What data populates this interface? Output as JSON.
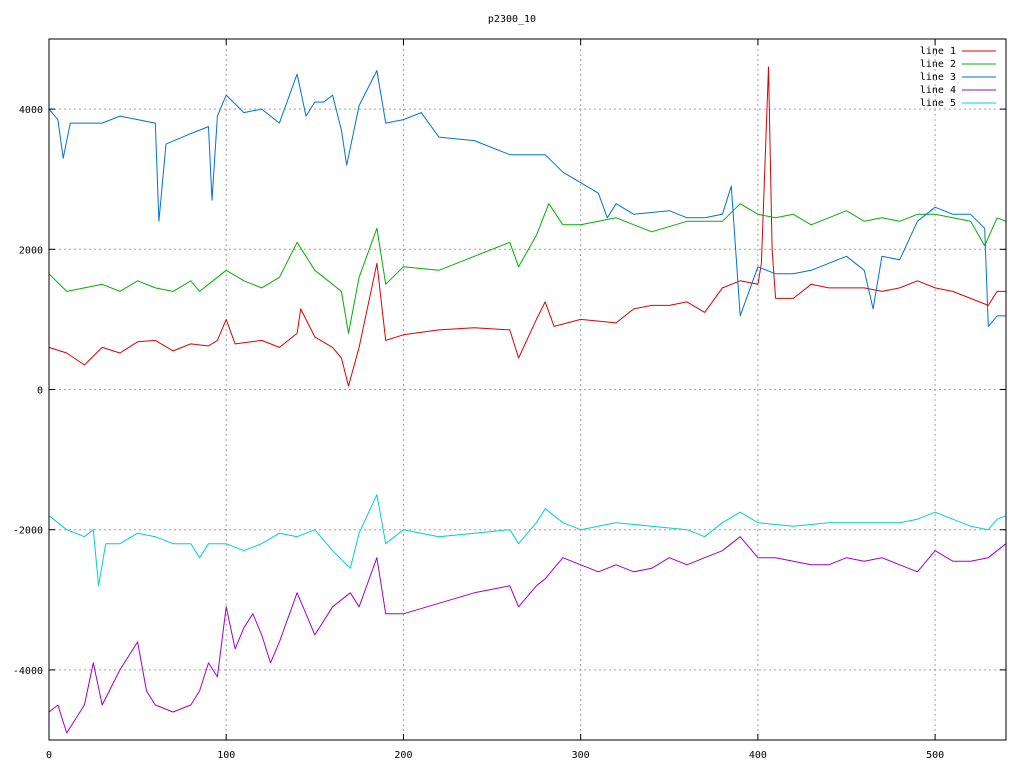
{
  "chart_data": {
    "type": "line",
    "title": "p2300_10",
    "xlabel": "",
    "ylabel": "",
    "xlim": [
      0,
      540
    ],
    "ylim": [
      -5000,
      5000
    ],
    "x_ticks": [
      0,
      100,
      200,
      300,
      400,
      500
    ],
    "y_ticks": [
      -4000,
      -2000,
      0,
      2000,
      4000
    ],
    "grid": true,
    "legend_position": "top-right",
    "series": [
      {
        "name": "line 1",
        "color": "#e00000",
        "points": [
          [
            0,
            600
          ],
          [
            10,
            520
          ],
          [
            20,
            350
          ],
          [
            30,
            600
          ],
          [
            40,
            520
          ],
          [
            50,
            680
          ],
          [
            60,
            700
          ],
          [
            70,
            550
          ],
          [
            80,
            650
          ],
          [
            90,
            620
          ],
          [
            95,
            700
          ],
          [
            100,
            1000
          ],
          [
            105,
            650
          ],
          [
            120,
            700
          ],
          [
            130,
            600
          ],
          [
            140,
            800
          ],
          [
            142,
            1150
          ],
          [
            150,
            750
          ],
          [
            160,
            600
          ],
          [
            165,
            450
          ],
          [
            169,
            50
          ],
          [
            175,
            600
          ],
          [
            185,
            1800
          ],
          [
            190,
            700
          ],
          [
            200,
            780
          ],
          [
            220,
            850
          ],
          [
            240,
            880
          ],
          [
            260,
            850
          ],
          [
            265,
            450
          ],
          [
            275,
            1000
          ],
          [
            280,
            1250
          ],
          [
            285,
            900
          ],
          [
            300,
            1000
          ],
          [
            320,
            950
          ],
          [
            330,
            1150
          ],
          [
            340,
            1200
          ],
          [
            350,
            1200
          ],
          [
            360,
            1250
          ],
          [
            370,
            1100
          ],
          [
            380,
            1450
          ],
          [
            390,
            1550
          ],
          [
            400,
            1500
          ],
          [
            402,
            1800
          ],
          [
            406,
            4600
          ],
          [
            408,
            2000
          ],
          [
            410,
            1300
          ],
          [
            420,
            1300
          ],
          [
            430,
            1500
          ],
          [
            440,
            1450
          ],
          [
            450,
            1450
          ],
          [
            460,
            1450
          ],
          [
            470,
            1400
          ],
          [
            480,
            1450
          ],
          [
            490,
            1550
          ],
          [
            500,
            1450
          ],
          [
            510,
            1400
          ],
          [
            520,
            1300
          ],
          [
            530,
            1200
          ],
          [
            535,
            1400
          ],
          [
            540,
            1400
          ]
        ]
      },
      {
        "name": "line 2",
        "color": "#00b000",
        "points": [
          [
            0,
            1650
          ],
          [
            10,
            1400
          ],
          [
            20,
            1450
          ],
          [
            30,
            1500
          ],
          [
            40,
            1400
          ],
          [
            50,
            1550
          ],
          [
            60,
            1450
          ],
          [
            70,
            1400
          ],
          [
            80,
            1550
          ],
          [
            85,
            1400
          ],
          [
            90,
            1500
          ],
          [
            100,
            1700
          ],
          [
            110,
            1550
          ],
          [
            120,
            1450
          ],
          [
            130,
            1600
          ],
          [
            140,
            2100
          ],
          [
            150,
            1700
          ],
          [
            160,
            1500
          ],
          [
            165,
            1400
          ],
          [
            169,
            800
          ],
          [
            175,
            1600
          ],
          [
            185,
            2300
          ],
          [
            190,
            1500
          ],
          [
            200,
            1750
          ],
          [
            220,
            1700
          ],
          [
            240,
            1900
          ],
          [
            260,
            2100
          ],
          [
            265,
            1750
          ],
          [
            275,
            2200
          ],
          [
            282,
            2650
          ],
          [
            290,
            2350
          ],
          [
            300,
            2350
          ],
          [
            320,
            2450
          ],
          [
            340,
            2250
          ],
          [
            360,
            2400
          ],
          [
            380,
            2400
          ],
          [
            390,
            2650
          ],
          [
            400,
            2500
          ],
          [
            410,
            2450
          ],
          [
            420,
            2500
          ],
          [
            430,
            2350
          ],
          [
            440,
            2450
          ],
          [
            450,
            2550
          ],
          [
            460,
            2400
          ],
          [
            470,
            2450
          ],
          [
            480,
            2400
          ],
          [
            490,
            2500
          ],
          [
            500,
            2500
          ],
          [
            510,
            2450
          ],
          [
            520,
            2400
          ],
          [
            528,
            2050
          ],
          [
            535,
            2450
          ],
          [
            540,
            2400
          ]
        ]
      },
      {
        "name": "line 3",
        "color": "#0070e0",
        "points": [
          [
            0,
            4000
          ],
          [
            5,
            3850
          ],
          [
            8,
            3300
          ],
          [
            12,
            3800
          ],
          [
            20,
            3800
          ],
          [
            30,
            3800
          ],
          [
            40,
            3900
          ],
          [
            50,
            3850
          ],
          [
            60,
            3800
          ],
          [
            62,
            2400
          ],
          [
            66,
            3500
          ],
          [
            80,
            3650
          ],
          [
            90,
            3750
          ],
          [
            92,
            2700
          ],
          [
            95,
            3900
          ],
          [
            100,
            4200
          ],
          [
            110,
            3950
          ],
          [
            120,
            4000
          ],
          [
            130,
            3800
          ],
          [
            140,
            4500
          ],
          [
            145,
            3900
          ],
          [
            150,
            4100
          ],
          [
            155,
            4100
          ],
          [
            160,
            4200
          ],
          [
            165,
            3700
          ],
          [
            168,
            3200
          ],
          [
            175,
            4050
          ],
          [
            185,
            4550
          ],
          [
            190,
            3800
          ],
          [
            200,
            3850
          ],
          [
            210,
            3950
          ],
          [
            220,
            3600
          ],
          [
            240,
            3550
          ],
          [
            260,
            3350
          ],
          [
            280,
            3350
          ],
          [
            290,
            3100
          ],
          [
            300,
            2950
          ],
          [
            310,
            2800
          ],
          [
            315,
            2450
          ],
          [
            320,
            2650
          ],
          [
            330,
            2500
          ],
          [
            350,
            2550
          ],
          [
            360,
            2450
          ],
          [
            370,
            2450
          ],
          [
            380,
            2500
          ],
          [
            385,
            2900
          ],
          [
            390,
            1050
          ],
          [
            400,
            1750
          ],
          [
            410,
            1650
          ],
          [
            420,
            1650
          ],
          [
            430,
            1700
          ],
          [
            440,
            1800
          ],
          [
            450,
            1900
          ],
          [
            460,
            1700
          ],
          [
            465,
            1150
          ],
          [
            470,
            1900
          ],
          [
            480,
            1850
          ],
          [
            490,
            2400
          ],
          [
            500,
            2600
          ],
          [
            510,
            2500
          ],
          [
            520,
            2500
          ],
          [
            528,
            2300
          ],
          [
            530,
            900
          ],
          [
            535,
            1050
          ],
          [
            540,
            1050
          ]
        ]
      },
      {
        "name": "line 4",
        "color": "#a000d0",
        "points": [
          [
            0,
            -4600
          ],
          [
            5,
            -4500
          ],
          [
            10,
            -4900
          ],
          [
            20,
            -4500
          ],
          [
            25,
            -3900
          ],
          [
            30,
            -4500
          ],
          [
            40,
            -4000
          ],
          [
            50,
            -3600
          ],
          [
            55,
            -4300
          ],
          [
            60,
            -4500
          ],
          [
            70,
            -4600
          ],
          [
            80,
            -4500
          ],
          [
            85,
            -4300
          ],
          [
            90,
            -3900
          ],
          [
            95,
            -4100
          ],
          [
            100,
            -3100
          ],
          [
            105,
            -3700
          ],
          [
            110,
            -3400
          ],
          [
            115,
            -3200
          ],
          [
            120,
            -3500
          ],
          [
            125,
            -3900
          ],
          [
            130,
            -3600
          ],
          [
            140,
            -2900
          ],
          [
            145,
            -3200
          ],
          [
            150,
            -3500
          ],
          [
            160,
            -3100
          ],
          [
            170,
            -2900
          ],
          [
            175,
            -3100
          ],
          [
            185,
            -2400
          ],
          [
            190,
            -3200
          ],
          [
            200,
            -3200
          ],
          [
            220,
            -3050
          ],
          [
            240,
            -2900
          ],
          [
            260,
            -2800
          ],
          [
            265,
            -3100
          ],
          [
            275,
            -2800
          ],
          [
            280,
            -2700
          ],
          [
            290,
            -2400
          ],
          [
            300,
            -2500
          ],
          [
            310,
            -2600
          ],
          [
            320,
            -2500
          ],
          [
            330,
            -2600
          ],
          [
            340,
            -2550
          ],
          [
            350,
            -2400
          ],
          [
            360,
            -2500
          ],
          [
            370,
            -2400
          ],
          [
            380,
            -2300
          ],
          [
            390,
            -2100
          ],
          [
            400,
            -2400
          ],
          [
            410,
            -2400
          ],
          [
            420,
            -2450
          ],
          [
            430,
            -2500
          ],
          [
            440,
            -2500
          ],
          [
            450,
            -2400
          ],
          [
            460,
            -2450
          ],
          [
            470,
            -2400
          ],
          [
            480,
            -2500
          ],
          [
            490,
            -2600
          ],
          [
            500,
            -2300
          ],
          [
            510,
            -2450
          ],
          [
            520,
            -2450
          ],
          [
            530,
            -2400
          ],
          [
            535,
            -2300
          ],
          [
            540,
            -2200
          ]
        ]
      },
      {
        "name": "line 5",
        "color": "#00d0d0",
        "points": [
          [
            0,
            -1800
          ],
          [
            10,
            -2000
          ],
          [
            20,
            -2100
          ],
          [
            25,
            -2000
          ],
          [
            28,
            -2800
          ],
          [
            32,
            -2200
          ],
          [
            40,
            -2200
          ],
          [
            50,
            -2050
          ],
          [
            60,
            -2100
          ],
          [
            70,
            -2200
          ],
          [
            80,
            -2200
          ],
          [
            85,
            -2400
          ],
          [
            90,
            -2200
          ],
          [
            100,
            -2200
          ],
          [
            110,
            -2300
          ],
          [
            120,
            -2200
          ],
          [
            130,
            -2050
          ],
          [
            140,
            -2100
          ],
          [
            150,
            -2000
          ],
          [
            160,
            -2300
          ],
          [
            170,
            -2550
          ],
          [
            175,
            -2050
          ],
          [
            185,
            -1500
          ],
          [
            190,
            -2200
          ],
          [
            200,
            -2000
          ],
          [
            220,
            -2100
          ],
          [
            240,
            -2050
          ],
          [
            260,
            -2000
          ],
          [
            265,
            -2200
          ],
          [
            275,
            -1900
          ],
          [
            280,
            -1700
          ],
          [
            290,
            -1900
          ],
          [
            300,
            -2000
          ],
          [
            320,
            -1900
          ],
          [
            340,
            -1950
          ],
          [
            360,
            -2000
          ],
          [
            370,
            -2100
          ],
          [
            380,
            -1900
          ],
          [
            390,
            -1750
          ],
          [
            400,
            -1900
          ],
          [
            420,
            -1950
          ],
          [
            440,
            -1900
          ],
          [
            460,
            -1900
          ],
          [
            480,
            -1900
          ],
          [
            490,
            -1850
          ],
          [
            500,
            -1750
          ],
          [
            510,
            -1850
          ],
          [
            520,
            -1950
          ],
          [
            530,
            -2000
          ],
          [
            535,
            -1850
          ],
          [
            540,
            -1800
          ]
        ]
      }
    ]
  }
}
